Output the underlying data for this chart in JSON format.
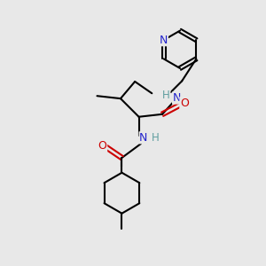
{
  "bg_color": "#e8e8e8",
  "atom_colors": {
    "C": "#000000",
    "N": "#2222cc",
    "O": "#cc0000",
    "H_label": "#5f9ea0"
  },
  "bond_color": "#000000",
  "bond_width": 1.5,
  "figsize": [
    3.0,
    3.0
  ],
  "dpi": 100
}
